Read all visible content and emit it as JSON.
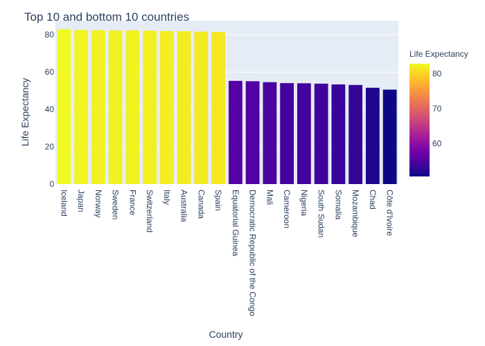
{
  "chart_data": {
    "type": "bar",
    "title": "Top 10 and bottom 10 countries",
    "xlabel": "Country",
    "ylabel": "Life Expectancy",
    "ylim": [
      0,
      87.5
    ],
    "yticks": [
      0,
      20,
      40,
      60,
      80
    ],
    "grid": true,
    "categories": [
      "Iceland",
      "Japan",
      "Norway",
      "Sweden",
      "France",
      "Switzerland",
      "Italy",
      "Australia",
      "Canada",
      "Spain",
      "Equatorial Guinea",
      "Democratic Republic of the Congo",
      "Mali",
      "Cameroon",
      "Nigeria",
      "South Sudan",
      "Somalia",
      "Mozambique",
      "Chad",
      "Côte d'Ivoire"
    ],
    "values": [
      82.9,
      82.5,
      82.4,
      82.3,
      82.3,
      82.2,
      82.0,
      81.9,
      81.7,
      81.5,
      55.3,
      55.1,
      54.6,
      54.1,
      54.0,
      53.8,
      53.4,
      53.1,
      51.6,
      50.6
    ],
    "colorbar": {
      "title": "Life Expectancy",
      "ticks": [
        60,
        70,
        80
      ],
      "range": [
        50.6,
        82.9
      ],
      "colorscale": [
        "#0d0887",
        "#46039f",
        "#7201a8",
        "#9c179e",
        "#bd3786",
        "#d8576b",
        "#ed7953",
        "#fb9f3a",
        "#fdca26",
        "#f0f921"
      ]
    },
    "colors": {
      "plot_bg": "#e5ecf6",
      "grid": "#ffffff",
      "text": "#2a3f5f"
    }
  }
}
